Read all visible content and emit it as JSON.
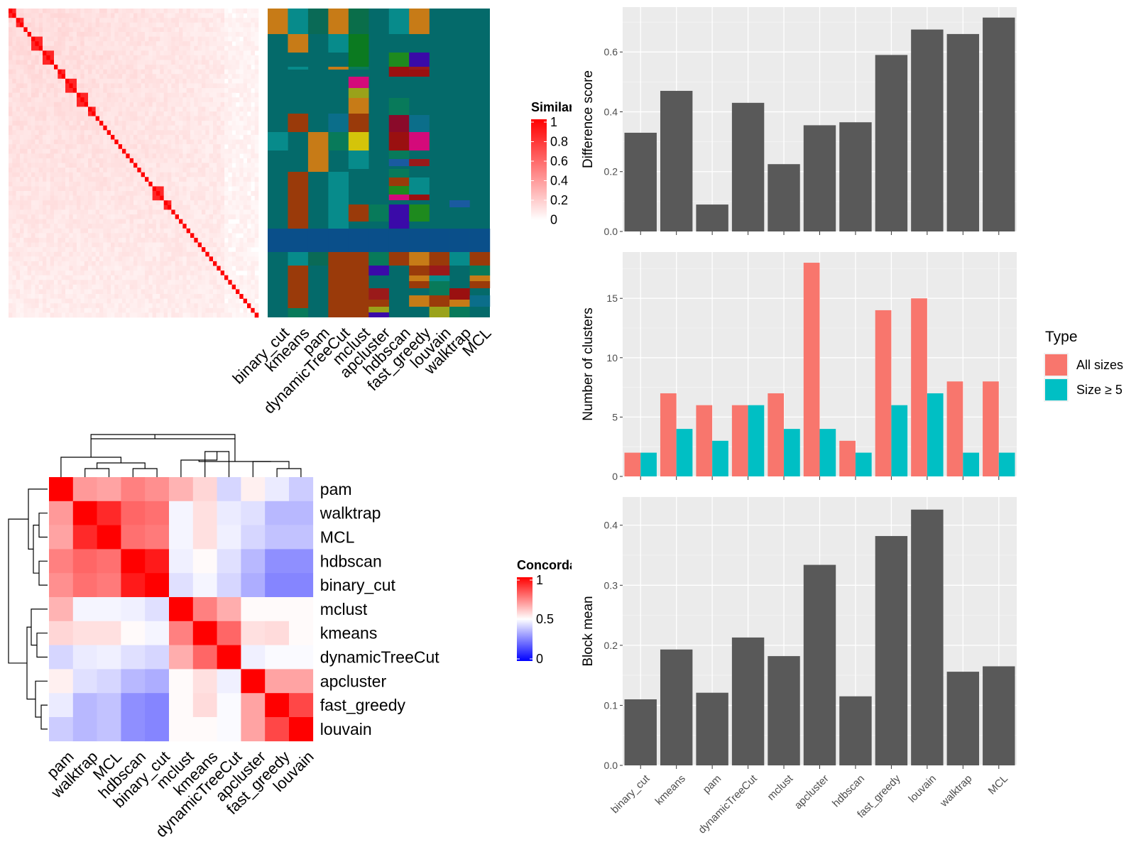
{
  "methods": [
    "binary_cut",
    "kmeans",
    "pam",
    "dynamicTreeCut",
    "mclust",
    "apcluster",
    "hdbscan",
    "fast_greedy",
    "louvain",
    "walktrap",
    "MCL"
  ],
  "similarity_panel": {
    "legend_title": "Similarity",
    "legend_ticks": [
      "1",
      "0.8",
      "0.6",
      "0.4",
      "0.2",
      "0"
    ],
    "colors": {
      "high": "#ff0000",
      "low": "#ffffff"
    }
  },
  "concordance_panel": {
    "legend_title": "Concordance",
    "legend_ticks": [
      "1",
      "0.5",
      "0"
    ],
    "row_order": [
      "pam",
      "walktrap",
      "MCL",
      "hdbscan",
      "binary_cut",
      "mclust",
      "kmeans",
      "dynamicTreeCut",
      "apcluster",
      "fast_greedy",
      "louvain"
    ],
    "col_order": [
      "pam",
      "walktrap",
      "MCL",
      "hdbscan",
      "binary_cut",
      "mclust",
      "kmeans",
      "dynamicTreeCut",
      "apcluster",
      "fast_greedy",
      "louvain"
    ],
    "colors": {
      "high": "#ff0000",
      "mid": "#ffffff",
      "low": "#0000ff"
    }
  },
  "legend": {
    "title": "Type",
    "items": [
      {
        "label": "All sizes",
        "color": "#f8766d"
      },
      {
        "label": "Size ≥ 5",
        "color": "#00bfc4"
      }
    ]
  },
  "chart_data": [
    {
      "type": "bar",
      "ylabel": "Difference score",
      "categories": [
        "binary_cut",
        "kmeans",
        "pam",
        "dynamicTreeCut",
        "mclust",
        "apcluster",
        "hdbscan",
        "fast_greedy",
        "louvain",
        "walktrap",
        "MCL"
      ],
      "values": [
        0.33,
        0.47,
        0.09,
        0.43,
        0.225,
        0.355,
        0.365,
        0.59,
        0.675,
        0.66,
        0.715
      ],
      "ylim": [
        0,
        0.75
      ],
      "yticks": [
        "0.0",
        "0.2",
        "0.4",
        "0.6"
      ],
      "yticks_num": [
        0,
        0.2,
        0.4,
        0.6
      ]
    },
    {
      "type": "bar",
      "ylabel": "Number of clusters",
      "categories": [
        "binary_cut",
        "kmeans",
        "pam",
        "dynamicTreeCut",
        "mclust",
        "apcluster",
        "hdbscan",
        "fast_greedy",
        "louvain",
        "walktrap",
        "MCL"
      ],
      "series": [
        {
          "name": "All sizes",
          "values": [
            2,
            7,
            6,
            6,
            7,
            18,
            3,
            14,
            15,
            8,
            8
          ]
        },
        {
          "name": "Size ≥ 5",
          "values": [
            2,
            4,
            3,
            6,
            4,
            4,
            2,
            6,
            7,
            2,
            2
          ]
        }
      ],
      "ylim": [
        0,
        18.9
      ],
      "yticks": [
        "0",
        "5",
        "10",
        "15"
      ],
      "yticks_num": [
        0,
        5,
        10,
        15
      ]
    },
    {
      "type": "bar",
      "ylabel": "Block mean",
      "categories": [
        "binary_cut",
        "kmeans",
        "pam",
        "dynamicTreeCut",
        "mclust",
        "apcluster",
        "hdbscan",
        "fast_greedy",
        "louvain",
        "walktrap",
        "MCL"
      ],
      "values": [
        0.11,
        0.193,
        0.121,
        0.213,
        0.182,
        0.334,
        0.115,
        0.382,
        0.426,
        0.156,
        0.165
      ],
      "ylim": [
        0,
        0.447
      ],
      "yticks": [
        "0.0",
        "0.1",
        "0.2",
        "0.3",
        "0.4"
      ],
      "yticks_num": [
        0,
        0.1,
        0.2,
        0.3,
        0.4
      ]
    }
  ]
}
